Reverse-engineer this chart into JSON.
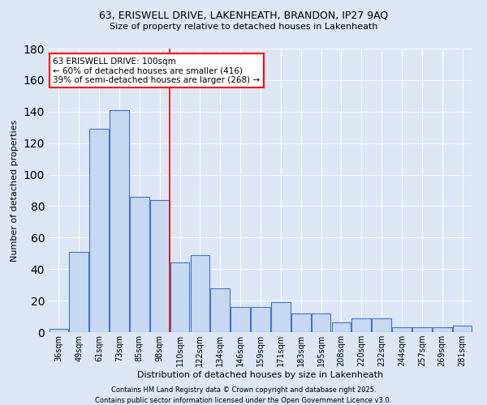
{
  "title1": "63, ERISWELL DRIVE, LAKENHEATH, BRANDON, IP27 9AQ",
  "title2": "Size of property relative to detached houses in Lakenheath",
  "xlabel": "Distribution of detached houses by size in Lakenheath",
  "ylabel": "Number of detached properties",
  "categories": [
    "36sqm",
    "49sqm",
    "61sqm",
    "73sqm",
    "85sqm",
    "98sqm",
    "110sqm",
    "122sqm",
    "134sqm",
    "146sqm",
    "159sqm",
    "171sqm",
    "183sqm",
    "195sqm",
    "208sqm",
    "220sqm",
    "232sqm",
    "244sqm",
    "257sqm",
    "269sqm",
    "281sqm"
  ],
  "values": [
    2,
    51,
    129,
    141,
    86,
    84,
    44,
    49,
    28,
    16,
    16,
    19,
    12,
    12,
    6,
    9,
    9,
    3,
    3,
    3,
    4
  ],
  "bar_color": "#c6d9f0",
  "bar_edge_color": "#4472c4",
  "red_line_index": 5,
  "annotation_text": "63 ERISWELL DRIVE: 100sqm\n← 60% of detached houses are smaller (416)\n39% of semi-detached houses are larger (268) →",
  "annotation_box_color": "white",
  "annotation_box_edge": "red",
  "footer1": "Contains HM Land Registry data © Crown copyright and database right 2025.",
  "footer2": "Contains public sector information licensed under the Open Government Licence v3.0.",
  "background_color": "#dce6f5",
  "ylim": [
    0,
    180
  ],
  "yticks": [
    0,
    20,
    40,
    60,
    80,
    100,
    120,
    140,
    160,
    180
  ]
}
